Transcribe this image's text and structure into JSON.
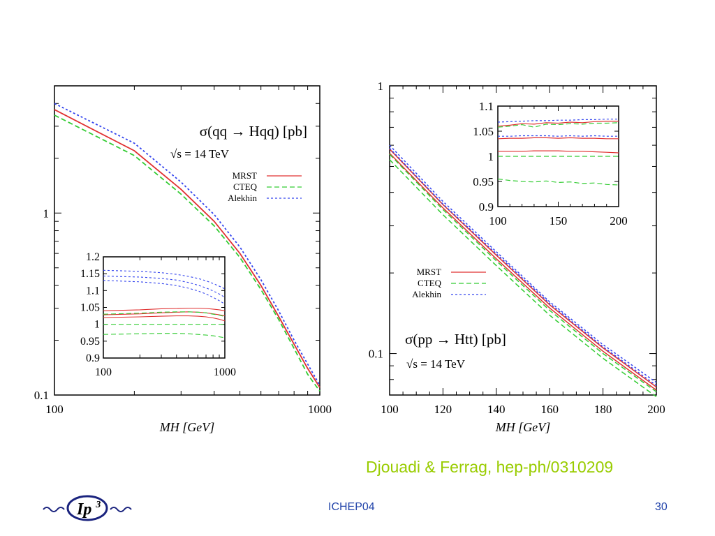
{
  "slide": {
    "citation": "Djouadi & Ferrag, hep-ph/0310209",
    "footer_center": "ICHEP04",
    "page_number": "30",
    "logo_text": "Ip",
    "logo_superscript": "3"
  },
  "colors": {
    "MRST": "#e03030",
    "CTEQ": "#33cc33",
    "Alekhin": "#3344ee",
    "citation": "#99cc00",
    "footer": "#2244aa"
  },
  "chart_data": [
    {
      "type": "line",
      "title": "σ(qq → Hqq) [pb]",
      "subtitle": "√s = 14 TeV",
      "xlabel": "M_H [GeV]",
      "ylabel": "",
      "xscale": "log",
      "yscale": "log",
      "xlim": [
        100,
        1000
      ],
      "ylim": [
        0.1,
        5
      ],
      "xticklabels": [
        "100",
        "1000"
      ],
      "yticklabels": [
        "0.1",
        "1"
      ],
      "legend": {
        "position": "right",
        "entries": [
          "MRST",
          "CTEQ",
          "Alekhin"
        ]
      },
      "x": [
        100,
        200,
        300,
        400,
        500,
        600,
        700,
        800,
        900,
        1000
      ],
      "series": [
        {
          "name": "MRST",
          "values": [
            3.7,
            2.2,
            1.35,
            0.9,
            0.6,
            0.4,
            0.27,
            0.19,
            0.14,
            0.11
          ]
        },
        {
          "name": "CTEQ",
          "values": [
            3.45,
            2.07,
            1.27,
            0.85,
            0.57,
            0.38,
            0.26,
            0.18,
            0.13,
            0.105
          ]
        },
        {
          "name": "Alekhin",
          "values": [
            4.0,
            2.42,
            1.48,
            0.98,
            0.65,
            0.43,
            0.29,
            0.2,
            0.148,
            0.113
          ]
        }
      ],
      "inset": {
        "xlim": [
          100,
          1000
        ],
        "ylim": [
          0.9,
          1.2
        ],
        "xticklabels": [
          "100",
          "1000"
        ],
        "yticklabels": [
          "1.2",
          "1.15",
          "1.1",
          "1.05",
          "1",
          "0.95",
          "0.9"
        ],
        "x": [
          100,
          200,
          300,
          400,
          500,
          600,
          700,
          800,
          900,
          1000
        ],
        "series": [
          {
            "name": "MRST",
            "values": [
              1.04,
              1.043,
              1.046,
              1.047,
              1.048,
              1.048,
              1.047,
              1.045,
              1.043,
              1.04
            ]
          },
          {
            "name": "MRST",
            "values": [
              1.028,
              1.031,
              1.034,
              1.036,
              1.037,
              1.036,
              1.034,
              1.031,
              1.028,
              1.025
            ]
          },
          {
            "name": "MRST",
            "values": [
              1.02,
              1.022,
              1.024,
              1.025,
              1.025,
              1.024,
              1.022,
              1.019,
              1.015,
              1.01
            ]
          },
          {
            "name": "CTEQ",
            "values": [
              1.03,
              1.033,
              1.036,
              1.037,
              1.037,
              1.036,
              1.034,
              1.03,
              1.027,
              1.023
            ]
          },
          {
            "name": "CTEQ",
            "values": [
              1.0,
              1.0,
              1.0,
              1.0,
              1.0,
              1.0,
              1.0,
              1.0,
              1.0,
              1.0
            ]
          },
          {
            "name": "CTEQ",
            "values": [
              0.97,
              0.972,
              0.973,
              0.973,
              0.972,
              0.97,
              0.968,
              0.966,
              0.963,
              0.96
            ]
          },
          {
            "name": "Alekhin",
            "values": [
              1.16,
              1.157,
              1.153,
              1.148,
              1.142,
              1.136,
              1.129,
              1.121,
              1.113,
              1.105
            ]
          },
          {
            "name": "Alekhin",
            "values": [
              1.143,
              1.14,
              1.136,
              1.131,
              1.124,
              1.116,
              1.108,
              1.099,
              1.09,
              1.08
            ]
          },
          {
            "name": "Alekhin",
            "values": [
              1.13,
              1.126,
              1.121,
              1.115,
              1.107,
              1.099,
              1.09,
              1.08,
              1.07,
              1.06
            ]
          }
        ]
      }
    },
    {
      "type": "line",
      "title": "σ(pp → Htt) [pb]",
      "subtitle": "√s = 14 TeV",
      "xlabel": "M_H [GeV]",
      "ylabel": "",
      "xscale": "linear",
      "yscale": "log",
      "xlim": [
        100,
        200
      ],
      "ylim": [
        0.07,
        1
      ],
      "xticklabels": [
        "100",
        "120",
        "140",
        "160",
        "180",
        "200"
      ],
      "yticklabels": [
        "0.1",
        "1"
      ],
      "legend": {
        "position": "center-left",
        "entries": [
          "MRST",
          "CTEQ",
          "Alekhin"
        ]
      },
      "x": [
        100,
        120,
        140,
        160,
        180,
        200
      ],
      "series": [
        {
          "name": "MRST",
          "values": [
            0.58,
            0.36,
            0.233,
            0.152,
            0.105,
            0.075
          ]
        },
        {
          "name": "MRST",
          "values": [
            0.56,
            0.35,
            0.226,
            0.148,
            0.102,
            0.073
          ]
        },
        {
          "name": "CTEQ",
          "values": [
            0.53,
            0.33,
            0.213,
            0.139,
            0.096,
            0.069
          ]
        },
        {
          "name": "CTEQ",
          "values": [
            0.555,
            0.345,
            0.222,
            0.145,
            0.1,
            0.072
          ]
        },
        {
          "name": "Alekhin",
          "values": [
            0.6,
            0.37,
            0.24,
            0.156,
            0.108,
            0.078
          ]
        },
        {
          "name": "Alekhin",
          "values": [
            0.585,
            0.362,
            0.236,
            0.154,
            0.106,
            0.076
          ]
        }
      ],
      "inset": {
        "xlim": [
          100,
          200
        ],
        "ylim": [
          0.9,
          1.1
        ],
        "xticklabels": [
          "100",
          "150",
          "200"
        ],
        "yticklabels": [
          "1.1",
          "1.05",
          "1",
          "0.95",
          "0.9"
        ],
        "x": [
          100,
          110,
          120,
          130,
          140,
          150,
          160,
          170,
          180,
          190,
          200
        ],
        "series": [
          {
            "name": "MRST",
            "values": [
              1.06,
              1.062,
              1.065,
              1.064,
              1.067,
              1.066,
              1.068,
              1.067,
              1.069,
              1.07,
              1.07
            ]
          },
          {
            "name": "MRST",
            "values": [
              1.035,
              1.036,
              1.036,
              1.037,
              1.037,
              1.036,
              1.037,
              1.036,
              1.036,
              1.035,
              1.035
            ]
          },
          {
            "name": "MRST",
            "values": [
              1.01,
              1.01,
              1.01,
              1.011,
              1.011,
              1.011,
              1.01,
              1.01,
              1.009,
              1.008,
              1.007
            ]
          },
          {
            "name": "CTEQ",
            "values": [
              1.058,
              1.06,
              1.063,
              1.058,
              1.064,
              1.063,
              1.065,
              1.064,
              1.066,
              1.066,
              1.067
            ]
          },
          {
            "name": "CTEQ",
            "values": [
              1.0,
              1.0,
              1.0,
              1.0,
              1.0,
              1.0,
              1.0,
              1.0,
              1.0,
              1.0,
              1.0
            ]
          },
          {
            "name": "CTEQ",
            "values": [
              0.955,
              0.952,
              0.95,
              0.949,
              0.951,
              0.948,
              0.949,
              0.946,
              0.947,
              0.944,
              0.943
            ]
          },
          {
            "name": "Alekhin",
            "values": [
              1.068,
              1.069,
              1.07,
              1.071,
              1.071,
              1.072,
              1.072,
              1.073,
              1.073,
              1.074,
              1.074
            ]
          },
          {
            "name": "Alekhin",
            "values": [
              1.04,
              1.04,
              1.041,
              1.041,
              1.041,
              1.04,
              1.041,
              1.04,
              1.041,
              1.04,
              1.04
            ]
          }
        ]
      }
    }
  ]
}
